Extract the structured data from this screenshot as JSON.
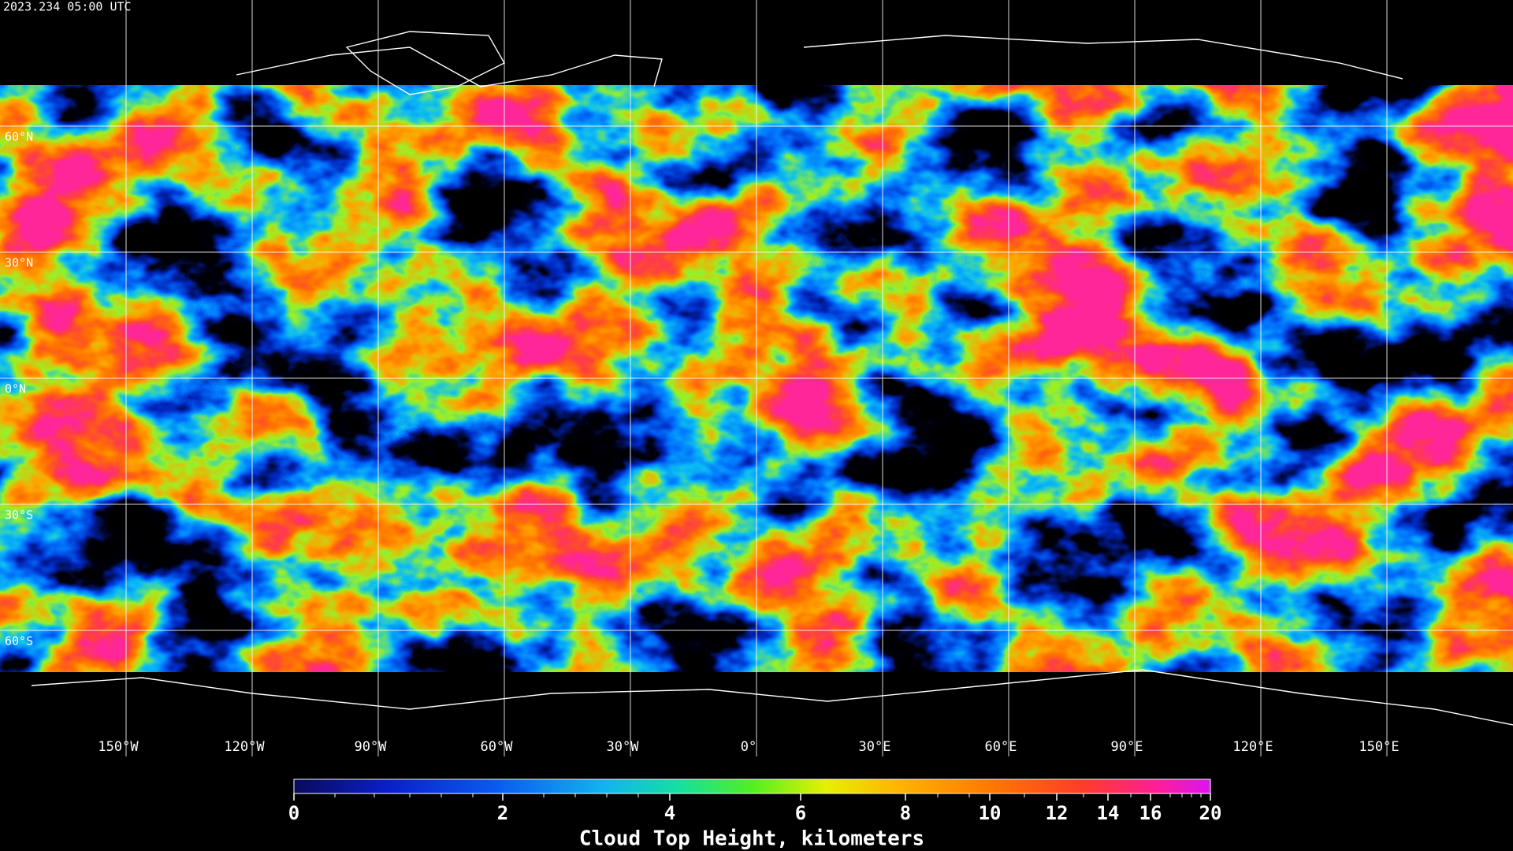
{
  "header": {
    "timestamp": "2023.234 05:00 UTC"
  },
  "map": {
    "latitude_labels": [
      "60°N",
      "30°N",
      "0°N",
      "30°S",
      "60°S"
    ],
    "longitude_labels": [
      "150°W",
      "120°W",
      "90°W",
      "60°W",
      "30°W",
      "0°",
      "30°E",
      "60°E",
      "90°E",
      "120°E",
      "150°E"
    ]
  },
  "colorbar": {
    "tick_labels": [
      "0",
      "2",
      "4",
      "6",
      "8",
      "10",
      "12",
      "14",
      "16",
      "20"
    ],
    "title": "Cloud Top Height, kilometers"
  }
}
